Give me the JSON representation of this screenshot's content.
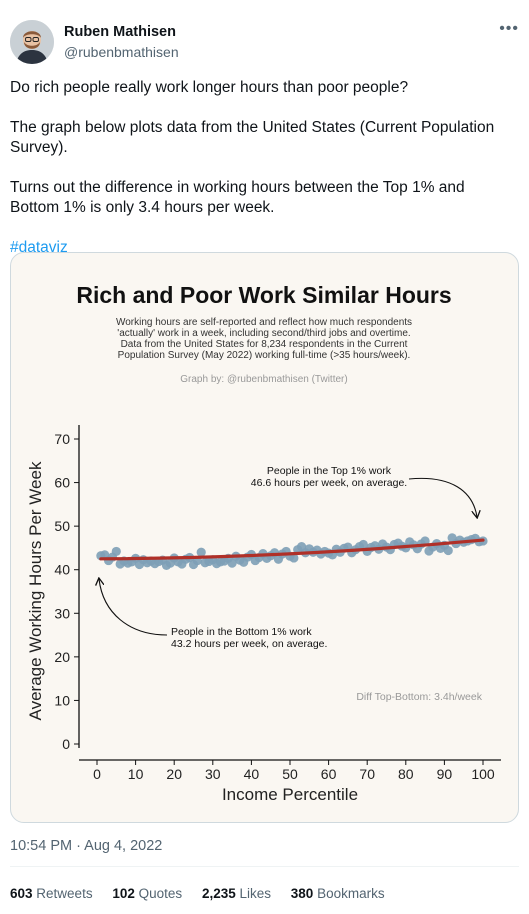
{
  "author": {
    "name": "Ruben Mathisen",
    "handle": "@rubenbmathisen"
  },
  "more_icon": "more-horizontal-icon",
  "tweet": {
    "paragraphs": [
      "Do rich people really work longer hours than poor people?",
      "The graph below plots data from the United States (Current Population Survey).",
      "Turns out the difference in working hours between the Top 1% and Bottom 1% is only 3.4 hours per week."
    ],
    "hashtag": "#dataviz"
  },
  "timestamp": "10:54 PM · Aug 4, 2022",
  "stats": [
    {
      "count": "603",
      "label": "Retweets"
    },
    {
      "count": "102",
      "label": "Quotes"
    },
    {
      "count": "2,235",
      "label": "Likes"
    },
    {
      "count": "380",
      "label": "Bookmarks"
    }
  ],
  "colors": {
    "accent": "#1d9bf0",
    "point": "#7d9fb6",
    "trend": "#b03028",
    "card_bg": "#faf7f2"
  },
  "chart_data": {
    "type": "scatter",
    "title": "Rich and Poor Work Similar Hours",
    "subtitle": [
      "Working hours are self-reported and reflect how much respondents",
      "'actually' work in a week, including second/third jobs and overtime.",
      "Data from the United States for 8,234 respondents in the Current",
      "Population Survey (May 2022) working full-time (>35 hours/week)."
    ],
    "credit": "Graph by: @rubenbmathisen (Twitter)",
    "xlabel": "Income Percentile",
    "ylabel": "Average Working Hours Per Week",
    "xlim": [
      0,
      100
    ],
    "ylim": [
      0,
      70
    ],
    "xticks": [
      0,
      10,
      20,
      30,
      40,
      50,
      60,
      70,
      80,
      90,
      100
    ],
    "yticks": [
      0,
      10,
      20,
      30,
      40,
      50,
      60,
      70
    ],
    "grid": false,
    "annotations": [
      {
        "lines": [
          "People in the Top 1% work",
          "46.6 hours per week, on average."
        ]
      },
      {
        "lines": [
          "People in the Bottom 1% work",
          "43.2 hours per week, on average."
        ]
      },
      {
        "lines": [
          "Diff Top-Bottom: 3.4h/week"
        ]
      }
    ],
    "series": [
      {
        "x": [
          1,
          2,
          3,
          4,
          5,
          6,
          7,
          8,
          9,
          10,
          11,
          12,
          13,
          14,
          15,
          16,
          17,
          18,
          19,
          20,
          21,
          22,
          23,
          24,
          25,
          26,
          27,
          28,
          29,
          30,
          31,
          32,
          33,
          34,
          35,
          36,
          37,
          38,
          39,
          40,
          41,
          42,
          43,
          44,
          45,
          46,
          47,
          48,
          49,
          50,
          51,
          52,
          53,
          54,
          55,
          56,
          57,
          58,
          59,
          60,
          61,
          62,
          63,
          64,
          65,
          66,
          67,
          68,
          69,
          70,
          71,
          72,
          73,
          74,
          75,
          76,
          77,
          78,
          79,
          80,
          81,
          82,
          83,
          84,
          85,
          86,
          87,
          88,
          89,
          90,
          91,
          92,
          93,
          94,
          95,
          96,
          97,
          98,
          99,
          100
        ],
        "y": [
          43.2,
          43.4,
          42.1,
          42.9,
          44.2,
          41.3,
          42.0,
          41.5,
          41.8,
          42.6,
          41.2,
          42.3,
          41.6,
          42.0,
          41.4,
          41.9,
          42.2,
          41.0,
          41.5,
          42.7,
          41.8,
          41.3,
          42.4,
          42.8,
          41.2,
          42.1,
          44.0,
          41.6,
          41.9,
          42.3,
          41.4,
          41.8,
          42.0,
          42.6,
          41.5,
          43.1,
          42.2,
          41.7,
          42.9,
          43.5,
          42.1,
          42.8,
          43.7,
          42.6,
          43.2,
          43.9,
          42.4,
          43.6,
          44.2,
          43.1,
          42.7,
          44.6,
          45.3,
          43.9,
          44.8,
          44.0,
          44.5,
          43.6,
          44.2,
          43.8,
          43.4,
          44.7,
          44.0,
          44.9,
          45.2,
          43.9,
          44.6,
          45.3,
          45.8,
          44.2,
          45.1,
          45.5,
          44.7,
          45.9,
          45.2,
          44.6,
          45.8,
          46.1,
          45.4,
          45.0,
          46.4,
          45.7,
          44.8,
          45.9,
          46.6,
          44.3,
          45.2,
          46.0,
          44.9,
          45.6,
          44.4,
          47.3,
          46.0,
          46.8,
          46.3,
          46.6,
          46.9,
          47.2,
          46.4,
          46.6
        ]
      }
    ],
    "trend": {
      "x": [
        1,
        100
      ],
      "y": [
        42.5,
        46.8
      ],
      "shape": "curved"
    }
  }
}
